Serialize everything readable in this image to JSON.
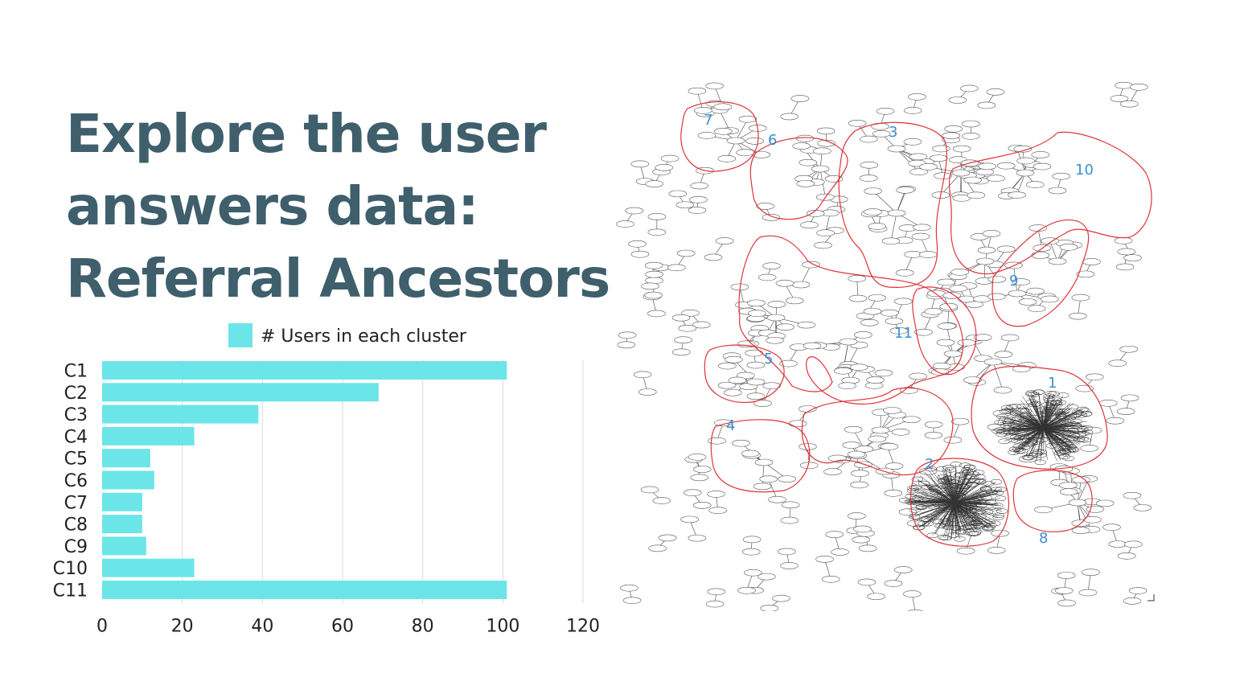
{
  "title": {
    "line1": "Explore the user",
    "line2": "answers data:",
    "line3": "Referral Ancestors"
  },
  "colors": {
    "title": "#3e5f6b",
    "bar": "#6ce5e8",
    "cluster_outline": "#e0333a",
    "cluster_label": "#3a8fd0"
  },
  "chart_data": {
    "type": "bar",
    "orientation": "horizontal",
    "categories": [
      "C1",
      "C2",
      "C3",
      "C4",
      "C5",
      "C6",
      "C7",
      "C8",
      "C9",
      "C10",
      "C11"
    ],
    "series": [
      {
        "name": "# Users in each cluster",
        "values": [
          101,
          69,
          39,
          23,
          12,
          13,
          10,
          10,
          11,
          23,
          101
        ]
      }
    ],
    "xlim": [
      0,
      120
    ],
    "xticks": [
      "0",
      "20",
      "40",
      "60",
      "80",
      "100",
      "120"
    ],
    "grid": "vertical",
    "legend": "top-center"
  },
  "graph_image": {
    "cluster_labels": [
      "1",
      "2",
      "3",
      "4",
      "5",
      "6",
      "7",
      "8",
      "9",
      "10",
      "11"
    ]
  }
}
